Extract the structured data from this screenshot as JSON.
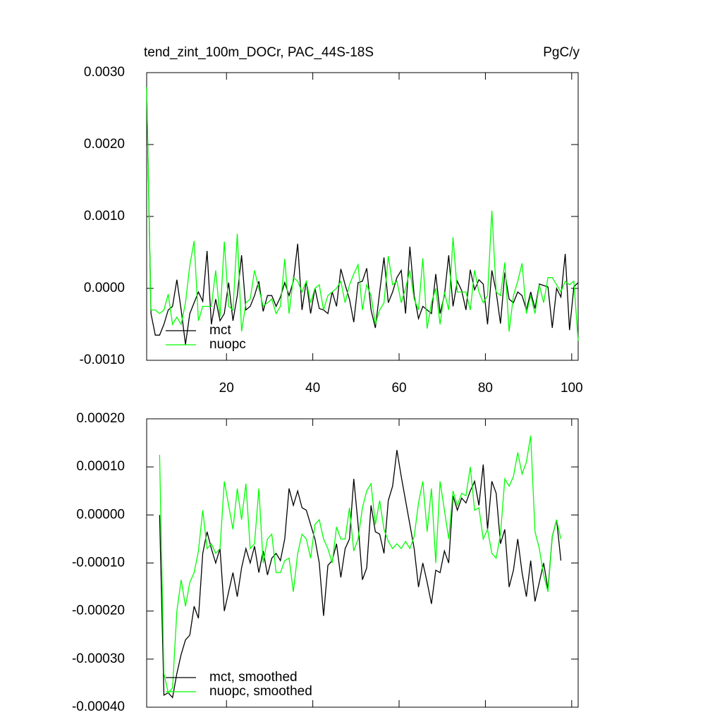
{
  "chart_data": [
    {
      "type": "line",
      "title": "tend_zint_100m_DOCr, PAC_44S-18S",
      "right_title": "PgC/y",
      "x": [
        1.5,
        2.5,
        3.5,
        4.5,
        5.5,
        6.5,
        7.5,
        8.5,
        9.5,
        10.5,
        11.5,
        12.5,
        13.5,
        14.5,
        15.5,
        16.5,
        17.5,
        18.5,
        19.5,
        20.5,
        21.5,
        22.5,
        23.5,
        24.5,
        25.5,
        26.5,
        27.5,
        28.5,
        29.5,
        30.5,
        31.5,
        32.5,
        33.5,
        34.5,
        35.5,
        36.5,
        37.5,
        38.5,
        39.5,
        40.5,
        41.5,
        42.5,
        43.5,
        44.5,
        45.5,
        46.5,
        47.5,
        48.5,
        49.5,
        50.5,
        51.5,
        52.5,
        53.5,
        54.5,
        55.5,
        56.5,
        57.5,
        58.5,
        59.5,
        60.5,
        61.5,
        62.5,
        63.5,
        64.5,
        65.5,
        66.5,
        67.5,
        68.5,
        69.5,
        70.5,
        71.5,
        72.5,
        73.5,
        74.5,
        75.5,
        76.5,
        77.5,
        78.5,
        79.5,
        80.5,
        81.5,
        82.5,
        83.5,
        84.5,
        85.5,
        86.5,
        87.5,
        88.5,
        89.5,
        90.5,
        91.5,
        92.5,
        93.5,
        94.5,
        95.5,
        96.5,
        97.5,
        98.5,
        99.5,
        100.5,
        101.5
      ],
      "series": [
        {
          "name": "mct",
          "color": "#000000",
          "values": [
            0.0028,
            -0.00035,
            -0.00065,
            -0.00065,
            -0.0005,
            -0.0003,
            -0.00025,
            0.00012,
            -0.0003,
            -0.00078,
            -0.00035,
            -0.0002,
            -5e-05,
            -0.00018,
            0.00052,
            -0.0005,
            -0.00015,
            -0.00045,
            -0.00035,
            8e-05,
            -0.00045,
            -0.0001,
            0.00046,
            -0.0003,
            -0.00025,
            -0.0001,
            0.0001,
            -0.00032,
            -0.0001,
            -0.0001,
            -0.00025,
            -0.00012,
            8e-05,
            -0.0001,
            0.0001,
            0.00062,
            -0.0003,
            0.0001,
            -0.00035,
            0,
            -0.00028,
            -0.0003,
            -0.00035,
            -5e-05,
            -0.00025,
            0.00027,
            5e-05,
            -0.00015,
            -0.00047,
            8e-05,
            0.0001,
            0.00028,
            -0.0003,
            -0.00055,
            -5e-05,
            0.00043,
            -0.0002,
            -5e-05,
            0.00015,
            0.00025,
            -0.00035,
            0.00058,
            -0.0001,
            -0.00042,
            -0.00025,
            -0.0003,
            -0.00035,
            0.0002,
            -0.00035,
            -0.0001,
            0.00046,
            -0.00025,
            0.0001,
            -3e-05,
            -0.0003,
            0.00026,
            -2e-05,
            0.00012,
            6e-05,
            -0.0005,
            0.00025,
            -5e-05,
            -0.00049,
            0.00022,
            -0.00015,
            -0.0002,
            -5e-05,
            -0.0001,
            -0.0003,
            -5e-05,
            -0.00028,
            6e-05,
            4e-05,
            2e-05,
            -0.00055,
            0,
            -0.00012,
            0.00048,
            -0.00058,
            2e-05,
            8e-05
          ]
        },
        {
          "name": "nuopc",
          "color": "#00ff00",
          "values": [
            0.0028,
            -0.0003,
            -0.0003,
            -0.00035,
            -0.0003,
            -8e-05,
            -0.0005,
            -0.0004,
            -0.0005,
            -0.0002,
            0.00032,
            0.00066,
            -0.00045,
            -0.00025,
            -0.00025,
            -0.00025,
            0.00025,
            -0.0004,
            0.00065,
            -0.00025,
            -0.0003,
            0.00076,
            -0.0006,
            -0.0002,
            -0.00015,
            0.00025,
            0,
            -0.00025,
            -0.0002,
            -0.00015,
            -0.00035,
            -0.00025,
            0.00041,
            -0.00035,
            0.00015,
            0.0001,
            -5e-05,
            0.0001,
            -0.0002,
            0,
            5e-05,
            -0.0003,
            -0.0001,
            -5e-05,
            0,
            0.0001,
            -0.0002,
            5e-05,
            0.0002,
            0.00033,
            -0.0003,
            5e-05,
            -0.0001,
            -0.0005,
            -0.0003,
            -0.0002,
            0.00045,
            5e-05,
            0.0001,
            -0.0002,
            0,
            0.00025,
            -0.00015,
            -0.0003,
            0.00042,
            -0.00056,
            -0.0002,
            0,
            -0.0005,
            -5e-05,
            -0.0003,
            0.00071,
            -5e-05,
            -5e-05,
            -5e-05,
            -0.0003,
            0.00025,
            -5e-05,
            -0.0002,
            -0.0001,
            0.00108,
            -5e-05,
            -0.0001,
            0.00036,
            -0.0006,
            -0.0001,
            0.0001,
            0.00035,
            -0.00035,
            -0.0001,
            -0.00035,
            5e-05,
            -0.0002,
            0.00015,
            0.00015,
            5e-05,
            -5e-05,
            0.0001,
            5e-05,
            0.0001,
            -0.00073
          ]
        }
      ],
      "xlim": [
        1.5,
        101.5
      ],
      "xticks": [
        20,
        40,
        60,
        80,
        100
      ],
      "xtick_labels": true,
      "ylim": [
        -0.001,
        0.003
      ],
      "yticks": [
        {
          "value": -0.001,
          "label": "-0.0010"
        },
        {
          "value": 0,
          "label": "0.0000"
        },
        {
          "value": 0.001,
          "label": "0.0010"
        },
        {
          "value": 0.002,
          "label": "0.0020"
        },
        {
          "value": 0.003,
          "label": "0.0030"
        }
      ],
      "legend": "lower left"
    },
    {
      "type": "line",
      "x": [
        1.5,
        2.5,
        3.5,
        4.5,
        5.5,
        6.5,
        7.5,
        8.5,
        9.5,
        10.5,
        11.5,
        12.5,
        13.5,
        14.5,
        15.5,
        16.5,
        17.5,
        18.5,
        19.5,
        20.5,
        21.5,
        22.5,
        23.5,
        24.5,
        25.5,
        26.5,
        27.5,
        28.5,
        29.5,
        30.5,
        31.5,
        32.5,
        33.5,
        34.5,
        35.5,
        36.5,
        37.5,
        38.5,
        39.5,
        40.5,
        41.5,
        42.5,
        43.5,
        44.5,
        45.5,
        46.5,
        47.5,
        48.5,
        49.5,
        50.5,
        51.5,
        52.5,
        53.5,
        54.5,
        55.5,
        56.5,
        57.5,
        58.5,
        59.5,
        60.5,
        61.5,
        62.5,
        63.5,
        64.5,
        65.5,
        66.5,
        67.5,
        68.5,
        69.5,
        70.5,
        71.5,
        72.5,
        73.5,
        74.5,
        75.5,
        76.5,
        77.5,
        78.5,
        79.5,
        80.5,
        81.5,
        82.5,
        83.5,
        84.5,
        85.5,
        86.5,
        87.5,
        88.5,
        89.5,
        90.5,
        91.5,
        92.5,
        93.5,
        94.5,
        95.5,
        96.5,
        97.5,
        98.5,
        99.5,
        100.5,
        101.5
      ],
      "series": [
        {
          "name": "mct, smoothed",
          "color": "#000000",
          "values": [
            null,
            null,
            null,
            0,
            -0.000375,
            -0.00037,
            -0.00038,
            -0.00033,
            -0.00029,
            -0.00026,
            -0.00025,
            -0.00019,
            -0.000215,
            -8e-05,
            -3.5e-05,
            -7e-05,
            -0.0001,
            -7e-05,
            -0.0002,
            -0.00016,
            -0.00012,
            -0.00017,
            -0.00011,
            -7e-05,
            -0.0001,
            -6.5e-05,
            -0.00012,
            -7.5e-05,
            -0.000125,
            -9e-05,
            -8e-05,
            -9.5e-05,
            -5e-05,
            5.5e-05,
            2e-05,
            5e-05,
            1.5e-05,
            1e-05,
            -2e-05,
            -5e-05,
            -0.0001,
            -0.00021,
            -0.000105,
            -9.5e-05,
            -6e-05,
            -0.00013,
            -7e-05,
            -5e-05,
            7.5e-05,
            -2e-05,
            -0.000135,
            -0.00011,
            2e-05,
            -3.5e-05,
            -4e-05,
            -8e-05,
            3e-05,
            6e-05,
            0.000135,
            8e-05,
            3e-05,
            -2e-05,
            -7e-05,
            -0.00015,
            -0.0001,
            -0.00014,
            -0.000185,
            -0.000115,
            -0.00012,
            -7.5e-05,
            -0.0001,
            4e-05,
            1e-05,
            3.5e-05,
            2.5e-05,
            5e-05,
            7e-05,
            2e-05,
            0.000105,
            -3e-05,
            7e-05,
            4.5e-05,
            -6e-05,
            -3e-05,
            -0.00015,
            -0.000115,
            -5e-05,
            -0.00012,
            -0.00017,
            -9.5e-05,
            -0.00018,
            -0.00014,
            -0.0001,
            -0.000155,
            -4.5e-05,
            -1e-05,
            -9.5e-05,
            null,
            null,
            null,
            null
          ]
        },
        {
          "name": "nuopc, smoothed",
          "color": "#00ff00",
          "values": [
            null,
            null,
            null,
            0.000125,
            -0.00033,
            -0.00037,
            -0.00036,
            -0.0002,
            -0.000135,
            -0.00019,
            -0.00014,
            -0.00012,
            -7.5e-05,
            1e-05,
            -7e-05,
            -6e-05,
            -8e-05,
            -7e-05,
            7e-05,
            2e-05,
            -3e-05,
            5.5e-05,
            -1e-05,
            6.5e-05,
            -7e-05,
            -6e-05,
            5.5e-05,
            -0.0001,
            -5e-05,
            -4e-05,
            -0.00012,
            -0.00012,
            -9.5e-05,
            -9e-05,
            -0.00016,
            -8e-05,
            -4e-05,
            -5e-05,
            -9e-05,
            -2e-05,
            -1e-05,
            -5e-05,
            -7e-05,
            -0.0001,
            -2.5e-05,
            -5e-05,
            -5e-05,
            1.5e-05,
            -7.5e-05,
            -5e-05,
            1.5e-05,
            5e-05,
            6.5e-05,
            -2e-05,
            3e-05,
            -3e-05,
            -5.5e-05,
            -7e-05,
            -6e-05,
            -7e-05,
            -5.5e-05,
            -7e-05,
            -4.5e-05,
            2.5e-05,
            7e-05,
            -3.5e-05,
            5.5e-05,
            -0.0001,
            7e-05,
            1e-05,
            -5e-05,
            5e-05,
            2e-05,
            4.5e-05,
            4e-05,
            0.0001,
            1e-05,
            1.5e-05,
            -5e-05,
            -3e-05,
            -8e-05,
            -9e-05,
            -4e-05,
            7.5e-05,
            6e-05,
            8e-05,
            0.00013,
            8.5e-05,
            0.00011,
            0.000165,
            -3.5e-05,
            -7e-05,
            -0.000125,
            -0.00016,
            -4.5e-05,
            -1e-05,
            -5e-05,
            null,
            null,
            null,
            null
          ]
        }
      ],
      "xlim": [
        1.5,
        101.5
      ],
      "xticks": [
        20,
        40,
        60,
        80,
        100
      ],
      "xtick_labels": false,
      "ylim": [
        -0.0004,
        0.0002
      ],
      "yticks": [
        {
          "value": -0.0004,
          "label": "-0.00040"
        },
        {
          "value": -0.0003,
          "label": "-0.00030"
        },
        {
          "value": -0.0002,
          "label": "-0.00020"
        },
        {
          "value": -0.0001,
          "label": "-0.00010"
        },
        {
          "value": 0,
          "label": "0.00000"
        },
        {
          "value": 0.0001,
          "label": "0.00010"
        },
        {
          "value": 0.0002,
          "label": "0.00020"
        }
      ],
      "legend": "lower left"
    }
  ]
}
